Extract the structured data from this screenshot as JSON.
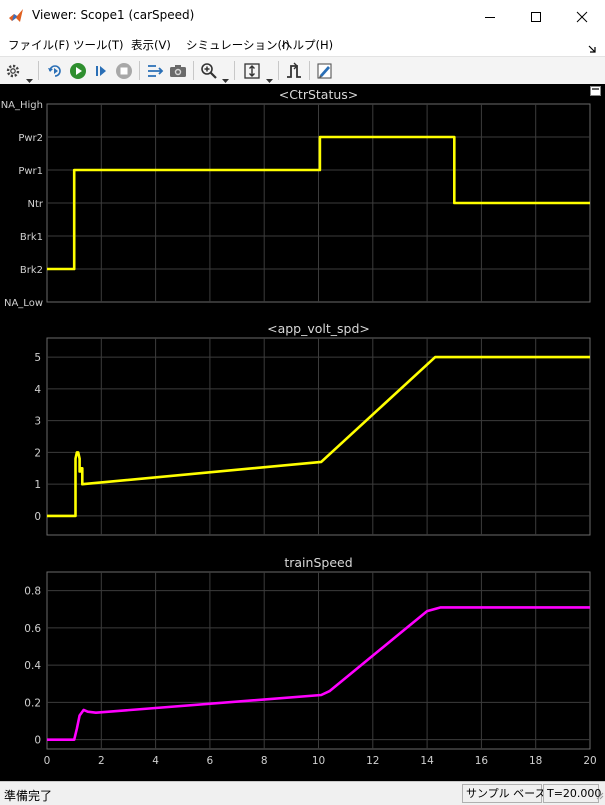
{
  "window": {
    "title": "Viewer: Scope1 (carSpeed)",
    "icon": "matlab-logo-icon"
  },
  "menu": {
    "items": [
      {
        "label": "ファイル(F)"
      },
      {
        "label": "ツール(T)"
      },
      {
        "label": "表示(V)"
      },
      {
        "label": "シミュレーション(I)"
      },
      {
        "label": "ヘルプ(H)"
      }
    ]
  },
  "toolbar": {
    "icons": [
      "gear-icon",
      "step-back-icon",
      "run-icon",
      "step-forward-icon",
      "stop-icon",
      "highlight-block-icon",
      "snapshot-icon",
      "zoom-in-icon",
      "scale-axes-icon",
      "trigger-icon",
      "style-icon"
    ]
  },
  "status": {
    "text": "準備完了",
    "sample": "サンプル ベース",
    "time": "T=20.000"
  },
  "chart_data": [
    {
      "type": "line",
      "title": "<CtrStatus>",
      "xlim": [
        0,
        20
      ],
      "y_ticks": [
        "NA_Low",
        "Brk2",
        "Brk1",
        "Ntr",
        "Pwr1",
        "Pwr2",
        "NA_High"
      ],
      "ylim": [
        -3,
        3
      ],
      "grid": true,
      "color": "#ffff00",
      "x": [
        0,
        1.0,
        1.0,
        10.05,
        10.05,
        15.0,
        15.0,
        20
      ],
      "y": [
        -2,
        -2,
        1,
        1,
        2,
        2,
        0,
        0
      ]
    },
    {
      "type": "line",
      "title": "<app_volt_spd>",
      "xlim": [
        0,
        20
      ],
      "ylim": [
        -0.6,
        5.6
      ],
      "yticks": [
        0,
        1,
        2,
        3,
        4,
        5
      ],
      "grid": true,
      "color": "#ffff00",
      "x": [
        0,
        1.05,
        1.05,
        1.1,
        1.15,
        1.2,
        1.2,
        1.25,
        1.25,
        1.3,
        1.3,
        10.1,
        14.3,
        20
      ],
      "y": [
        0,
        0,
        1.8,
        2.0,
        2.0,
        1.8,
        1.4,
        1.4,
        1.5,
        1.5,
        1.0,
        1.7,
        5.0,
        5.0
      ]
    },
    {
      "type": "line",
      "title": "trainSpeed",
      "xlim": [
        0,
        20
      ],
      "xticks": [
        0,
        2,
        4,
        6,
        8,
        10,
        12,
        14,
        16,
        18,
        20
      ],
      "ylim": [
        -0.05,
        0.9
      ],
      "yticks": [
        0,
        0.2,
        0.4,
        0.6,
        0.8
      ],
      "grid": true,
      "color": "#ff00ff",
      "x": [
        0,
        1.0,
        1.1,
        1.2,
        1.35,
        1.5,
        1.8,
        10.1,
        10.4,
        14.0,
        14.5,
        20
      ],
      "y": [
        0,
        0,
        0.06,
        0.13,
        0.16,
        0.15,
        0.145,
        0.24,
        0.26,
        0.69,
        0.71,
        0.71
      ]
    }
  ]
}
